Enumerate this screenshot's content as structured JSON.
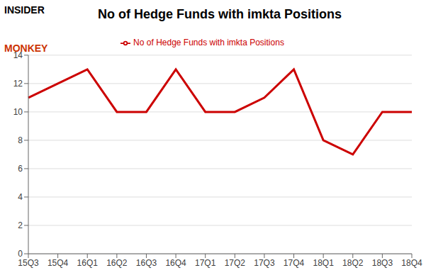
{
  "chart_data": {
    "type": "line",
    "title": "No of Hedge Funds with imkta Positions",
    "annotations": [
      "INSIDER",
      "MONKEY"
    ],
    "categories": [
      "15Q3",
      "15Q4",
      "16Q1",
      "16Q2",
      "16Q3",
      "16Q4",
      "17Q1",
      "17Q2",
      "17Q3",
      "17Q4",
      "18Q1",
      "18Q2",
      "18Q3",
      "18Q4"
    ],
    "series": [
      {
        "name": "No of Hedge Funds with imkta Positions",
        "color": "#cc0000",
        "values": [
          11,
          12,
          13,
          10,
          10,
          13,
          10,
          10,
          11,
          13,
          8,
          7,
          10,
          10
        ]
      }
    ],
    "ylim": [
      0,
      14
    ],
    "yticks": [
      0,
      2,
      4,
      6,
      8,
      10,
      12,
      14
    ],
    "grid": true,
    "legend": "top"
  }
}
